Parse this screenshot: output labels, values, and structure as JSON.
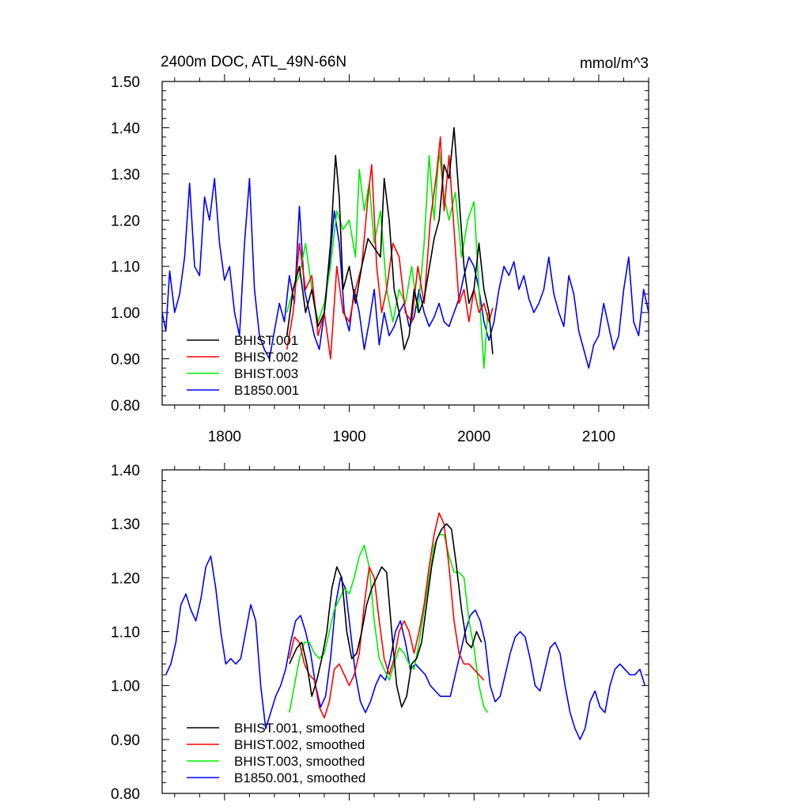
{
  "title": "2400m DOC, ATL_49N-66N",
  "units": "mmol/m^3",
  "colors": {
    "BHIST.001": "#000000",
    "BHIST.002": "#ff0000",
    "BHIST.003": "#00ee00",
    "B1850.001": "#0000ff"
  },
  "chart_data": [
    {
      "type": "line",
      "panel": "top",
      "title": "2400m DOC, ATL_49N-66N",
      "ylabel": "mmol/m^3",
      "xlim": [
        1750,
        2140
      ],
      "ylim": [
        0.8,
        1.5
      ],
      "xticks": [
        1800,
        1900,
        2000,
        2100
      ],
      "xtick_labels": [
        "1800",
        "1900",
        "2000",
        "2100"
      ],
      "yticks": [
        0.8,
        0.9,
        1.0,
        1.1,
        1.2,
        1.3,
        1.4,
        1.5
      ],
      "ytick_labels": [
        "0.80",
        "0.90",
        "1.00",
        "1.10",
        "1.20",
        "1.30",
        "1.40",
        "1.50"
      ],
      "legend": [
        "BHIST.001",
        "BHIST.002",
        "BHIST.003",
        "B1850.001"
      ],
      "legend_position": "bottom-left",
      "series": [
        {
          "name": "BHIST.001",
          "x": [
            1850,
            1855,
            1860,
            1865,
            1870,
            1875,
            1880,
            1885,
            1889,
            1892,
            1895,
            1900,
            1905,
            1910,
            1915,
            1920,
            1925,
            1928,
            1932,
            1936,
            1940,
            1944,
            1948,
            1952,
            1956,
            1960,
            1965,
            1968,
            1972,
            1976,
            1980,
            1984,
            1988,
            1992,
            1996,
            2000,
            2004,
            2008,
            2012,
            2015
          ],
          "y": [
            0.95,
            1.05,
            1.1,
            1.0,
            1.05,
            0.97,
            1.0,
            1.15,
            1.34,
            1.25,
            1.05,
            1.1,
            1.02,
            1.1,
            1.16,
            1.14,
            1.12,
            1.29,
            1.2,
            1.05,
            1.0,
            0.92,
            0.95,
            1.05,
            1.0,
            1.03,
            1.11,
            1.16,
            1.2,
            1.32,
            1.29,
            1.4,
            1.25,
            1.1,
            1.02,
            1.05,
            1.15,
            1.05,
            1.0,
            0.91
          ]
        },
        {
          "name": "BHIST.002",
          "x": [
            1850,
            1855,
            1860,
            1865,
            1870,
            1875,
            1880,
            1885,
            1890,
            1895,
            1900,
            1905,
            1910,
            1915,
            1918,
            1922,
            1926,
            1930,
            1935,
            1940,
            1945,
            1950,
            1955,
            1960,
            1965,
            1970,
            1973,
            1976,
            1980,
            1984,
            1988,
            1992,
            1996,
            2000,
            2004,
            2008,
            2012,
            2015
          ],
          "y": [
            0.92,
            1.0,
            1.15,
            1.05,
            1.08,
            0.95,
            1.0,
            0.9,
            1.1,
            1.0,
            0.98,
            1.05,
            1.1,
            1.25,
            1.32,
            1.1,
            1.0,
            1.05,
            1.15,
            1.12,
            1.0,
            0.98,
            1.1,
            1.02,
            1.2,
            1.3,
            1.38,
            1.22,
            1.34,
            1.18,
            1.02,
            1.05,
            0.98,
            1.05,
            1.0,
            1.02,
            0.98,
            1.01
          ]
        },
        {
          "name": "BHIST.003",
          "x": [
            1850,
            1855,
            1860,
            1865,
            1870,
            1875,
            1880,
            1885,
            1890,
            1895,
            1900,
            1905,
            1908,
            1912,
            1916,
            1920,
            1925,
            1930,
            1935,
            1940,
            1945,
            1950,
            1955,
            1960,
            1964,
            1968,
            1972,
            1976,
            1980,
            1985,
            1990,
            1995,
            2000,
            2004,
            2008,
            2011
          ],
          "y": [
            1.0,
            1.05,
            1.08,
            1.15,
            1.05,
            0.98,
            1.02,
            1.1,
            1.22,
            1.18,
            1.2,
            1.12,
            1.31,
            1.22,
            1.28,
            1.15,
            1.22,
            1.05,
            0.98,
            1.05,
            1.02,
            1.1,
            1.0,
            1.15,
            1.34,
            1.2,
            1.35,
            1.25,
            1.2,
            1.26,
            1.12,
            1.2,
            1.24,
            1.05,
            0.88,
            1.0
          ]
        },
        {
          "name": "B1850.001",
          "x": [
            1750,
            1753,
            1756,
            1760,
            1764,
            1768,
            1772,
            1776,
            1780,
            1784,
            1788,
            1792,
            1796,
            1800,
            1804,
            1808,
            1812,
            1816,
            1820,
            1824,
            1828,
            1832,
            1836,
            1840,
            1844,
            1848,
            1852,
            1856,
            1860,
            1864,
            1868,
            1872,
            1876,
            1880,
            1884,
            1888,
            1892,
            1896,
            1900,
            1904,
            1908,
            1912,
            1916,
            1920,
            1924,
            1928,
            1932,
            1936,
            1940,
            1944,
            1948,
            1952,
            1956,
            1960,
            1964,
            1968,
            1972,
            1976,
            1980,
            1984,
            1988,
            1992,
            1996,
            2000,
            2004,
            2008,
            2012,
            2016,
            2020,
            2024,
            2028,
            2032,
            2036,
            2040,
            2044,
            2048,
            2052,
            2056,
            2060,
            2064,
            2068,
            2072,
            2076,
            2080,
            2084,
            2088,
            2092,
            2096,
            2100,
            2104,
            2108,
            2112,
            2116,
            2120,
            2124,
            2128,
            2132,
            2136,
            2140
          ],
          "y": [
            1.0,
            0.96,
            1.09,
            1.0,
            1.04,
            1.12,
            1.28,
            1.1,
            1.08,
            1.25,
            1.2,
            1.29,
            1.15,
            1.07,
            1.1,
            1.0,
            0.95,
            1.15,
            1.29,
            1.05,
            0.95,
            0.92,
            0.9,
            0.96,
            1.02,
            0.98,
            1.08,
            1.02,
            1.23,
            1.05,
            1.0,
            0.95,
            0.92,
            1.0,
            1.1,
            1.22,
            1.15,
            1.0,
            0.96,
            1.05,
            1.0,
            0.92,
            0.98,
            1.05,
            0.93,
            1.0,
            0.95,
            0.97,
            1.0,
            1.02,
            0.97,
            0.99,
            1.05,
            1.0,
            0.97,
            0.99,
            1.02,
            0.98,
            0.97,
            1.0,
            1.03,
            1.08,
            1.12,
            1.1,
            1.05,
            0.98,
            0.94,
            0.98,
            1.05,
            1.1,
            1.08,
            1.11,
            1.05,
            1.08,
            1.03,
            1.0,
            1.02,
            1.05,
            1.12,
            1.04,
            1.0,
            0.97,
            1.08,
            1.04,
            0.96,
            0.92,
            0.88,
            0.93,
            0.95,
            1.02,
            0.97,
            0.92,
            0.95,
            1.05,
            1.12,
            0.98,
            0.95,
            1.05,
            1.0
          ]
        }
      ]
    },
    {
      "type": "line",
      "panel": "bottom",
      "xlim": [
        1750,
        2140
      ],
      "ylim": [
        0.8,
        1.4
      ],
      "xticks": [
        1800,
        1900,
        2000,
        2100
      ],
      "yticks": [
        0.8,
        0.9,
        1.0,
        1.1,
        1.2,
        1.3,
        1.4
      ],
      "ytick_labels": [
        "0.80",
        "0.90",
        "1.00",
        "1.10",
        "1.20",
        "1.30",
        "1.40"
      ],
      "legend": [
        "BHIST.001, smoothed",
        "BHIST.002, smoothed",
        "BHIST.003, smoothed",
        "B1850.001, smoothed"
      ],
      "legend_position": "bottom-left",
      "series": [
        {
          "name": "BHIST.001, smoothed",
          "x": [
            1852,
            1858,
            1862,
            1866,
            1870,
            1874,
            1878,
            1882,
            1886,
            1890,
            1894,
            1898,
            1902,
            1906,
            1910,
            1914,
            1918,
            1922,
            1926,
            1930,
            1934,
            1938,
            1942,
            1946,
            1950,
            1954,
            1958,
            1962,
            1966,
            1970,
            1974,
            1978,
            1982,
            1986,
            1990,
            1994,
            1998,
            2002,
            2006
          ],
          "y": [
            1.04,
            1.07,
            1.08,
            1.04,
            0.98,
            1.01,
            1.05,
            1.1,
            1.18,
            1.22,
            1.2,
            1.1,
            1.05,
            1.06,
            1.1,
            1.15,
            1.18,
            1.2,
            1.22,
            1.21,
            1.1,
            1.0,
            0.96,
            0.98,
            1.04,
            1.05,
            1.08,
            1.15,
            1.22,
            1.27,
            1.29,
            1.3,
            1.29,
            1.22,
            1.14,
            1.08,
            1.07,
            1.1,
            1.08
          ]
        },
        {
          "name": "BHIST.002, smoothed",
          "x": [
            1852,
            1856,
            1860,
            1864,
            1868,
            1872,
            1876,
            1880,
            1884,
            1888,
            1892,
            1896,
            1900,
            1904,
            1908,
            1912,
            1916,
            1920,
            1924,
            1928,
            1932,
            1936,
            1940,
            1944,
            1948,
            1952,
            1956,
            1960,
            1964,
            1968,
            1972,
            1976,
            1980,
            1984,
            1988,
            1992,
            1996,
            2000,
            2004,
            2008
          ],
          "y": [
            1.05,
            1.09,
            1.08,
            1.04,
            1.02,
            1.01,
            0.96,
            0.94,
            0.97,
            1.03,
            1.04,
            1.02,
            1.0,
            1.02,
            1.06,
            1.15,
            1.22,
            1.2,
            1.12,
            1.05,
            1.02,
            1.05,
            1.1,
            1.12,
            1.1,
            1.06,
            1.1,
            1.15,
            1.22,
            1.28,
            1.32,
            1.3,
            1.22,
            1.12,
            1.06,
            1.04,
            1.04,
            1.03,
            1.02,
            1.01
          ]
        },
        {
          "name": "BHIST.003, smoothed",
          "x": [
            1852,
            1856,
            1860,
            1864,
            1868,
            1872,
            1876,
            1880,
            1884,
            1888,
            1892,
            1896,
            1900,
            1904,
            1908,
            1912,
            1916,
            1920,
            1924,
            1928,
            1932,
            1936,
            1940,
            1944,
            1948,
            1952,
            1956,
            1960,
            1964,
            1968,
            1972,
            1976,
            1980,
            1984,
            1988,
            1992,
            1996,
            2000,
            2004,
            2008,
            2011
          ],
          "y": [
            0.95,
            1.0,
            1.05,
            1.08,
            1.08,
            1.06,
            1.05,
            1.06,
            1.1,
            1.14,
            1.16,
            1.18,
            1.17,
            1.2,
            1.24,
            1.26,
            1.22,
            1.12,
            1.05,
            1.03,
            1.01,
            1.04,
            1.07,
            1.06,
            1.04,
            1.03,
            1.08,
            1.14,
            1.2,
            1.26,
            1.28,
            1.28,
            1.24,
            1.21,
            1.21,
            1.2,
            1.12,
            1.07,
            1.0,
            0.96,
            0.95
          ]
        },
        {
          "name": "B1850.001, smoothed",
          "x": [
            1753,
            1757,
            1761,
            1765,
            1769,
            1773,
            1777,
            1781,
            1785,
            1789,
            1793,
            1797,
            1801,
            1805,
            1809,
            1813,
            1817,
            1821,
            1825,
            1829,
            1833,
            1837,
            1841,
            1845,
            1849,
            1853,
            1857,
            1861,
            1865,
            1869,
            1873,
            1877,
            1881,
            1885,
            1889,
            1893,
            1897,
            1901,
            1905,
            1909,
            1913,
            1917,
            1921,
            1925,
            1929,
            1933,
            1937,
            1941,
            1945,
            1949,
            1953,
            1957,
            1961,
            1965,
            1969,
            1973,
            1977,
            1981,
            1985,
            1989,
            1993,
            1997,
            2001,
            2005,
            2009,
            2013,
            2017,
            2021,
            2025,
            2029,
            2033,
            2037,
            2041,
            2045,
            2049,
            2053,
            2057,
            2061,
            2065,
            2069,
            2073,
            2077,
            2081,
            2085,
            2089,
            2093,
            2097,
            2101,
            2105,
            2109,
            2113,
            2117,
            2121,
            2125,
            2129,
            2133,
            2137
          ],
          "y": [
            1.02,
            1.04,
            1.08,
            1.15,
            1.17,
            1.14,
            1.12,
            1.16,
            1.22,
            1.24,
            1.18,
            1.1,
            1.04,
            1.05,
            1.04,
            1.05,
            1.1,
            1.15,
            1.12,
            1.0,
            0.92,
            0.95,
            0.98,
            1.0,
            1.03,
            1.08,
            1.12,
            1.13,
            1.1,
            1.06,
            1.0,
            0.96,
            0.98,
            1.05,
            1.15,
            1.2,
            1.18,
            1.1,
            1.02,
            0.97,
            0.95,
            0.97,
            1.0,
            1.02,
            1.01,
            1.05,
            1.1,
            1.12,
            1.08,
            1.03,
            1.04,
            1.03,
            1.02,
            1.0,
            0.99,
            0.98,
            0.98,
            0.98,
            1.02,
            1.06,
            1.1,
            1.13,
            1.14,
            1.12,
            1.08,
            1.0,
            0.97,
            0.98,
            1.02,
            1.06,
            1.09,
            1.1,
            1.09,
            1.05,
            1.0,
            0.99,
            1.03,
            1.07,
            1.08,
            1.06,
            1.0,
            0.95,
            0.92,
            0.9,
            0.92,
            0.97,
            0.99,
            0.96,
            0.95,
            1.0,
            1.03,
            1.04,
            1.03,
            1.02,
            1.02,
            1.03,
            1.0
          ]
        }
      ]
    }
  ]
}
